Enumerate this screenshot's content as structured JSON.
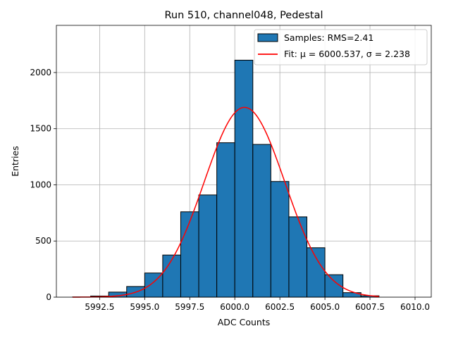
{
  "chart_data": {
    "type": "bar",
    "title": "Run 510, channel048, Pedestal",
    "xlabel": "ADC Counts",
    "ylabel": "Entries",
    "xlim": [
      5990.1,
      6010.9
    ],
    "ylim": [
      0,
      2420
    ],
    "xticks": [
      5992.5,
      5995.0,
      5997.5,
      6000.0,
      6002.5,
      6005.0,
      6007.5,
      6010.0
    ],
    "xtick_labels": [
      "5992.5",
      "5995.0",
      "5997.5",
      "6000.0",
      "6002.5",
      "6005.0",
      "6007.5",
      "6010.0"
    ],
    "yticks": [
      0,
      500,
      1000,
      1500,
      2000
    ],
    "ytick_labels": [
      "0",
      "500",
      "1000",
      "1500",
      "2000"
    ],
    "grid": true,
    "legend_position": "top-right",
    "bar_color": "#1f77b4",
    "fit_color": "#ff0000",
    "bins": [
      {
        "left": 5991,
        "right": 5992,
        "value": 2
      },
      {
        "left": 5992,
        "right": 5993,
        "value": 10
      },
      {
        "left": 5993,
        "right": 5994,
        "value": 45
      },
      {
        "left": 5994,
        "right": 5995,
        "value": 95
      },
      {
        "left": 5995,
        "right": 5996,
        "value": 215
      },
      {
        "left": 5996,
        "right": 5997,
        "value": 375
      },
      {
        "left": 5997,
        "right": 5998,
        "value": 760
      },
      {
        "left": 5998,
        "right": 5999,
        "value": 910
      },
      {
        "left": 5999,
        "right": 6000,
        "value": 1375
      },
      {
        "left": 6000,
        "right": 6001,
        "value": 2110
      },
      {
        "left": 6001,
        "right": 6002,
        "value": 1360
      },
      {
        "left": 6002,
        "right": 6003,
        "value": 1030
      },
      {
        "left": 6003,
        "right": 6004,
        "value": 715
      },
      {
        "left": 6004,
        "right": 6005,
        "value": 440
      },
      {
        "left": 6005,
        "right": 6006,
        "value": 200
      },
      {
        "left": 6006,
        "right": 6007,
        "value": 40
      },
      {
        "left": 6007,
        "right": 6008,
        "value": 12
      }
    ],
    "fit": {
      "mu": 6000.537,
      "sigma": 2.238,
      "amplitude": 1690,
      "x_range": [
        5991,
        6008
      ]
    },
    "legend": [
      {
        "label": "Samples: RMS=2.41",
        "kind": "patch"
      },
      {
        "label": "Fit: μ = 6000.537, σ = 2.238",
        "kind": "line"
      }
    ]
  }
}
